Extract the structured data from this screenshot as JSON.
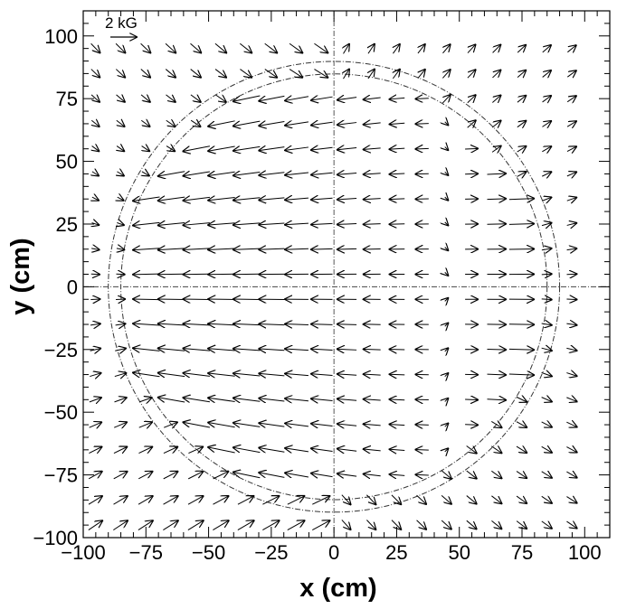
{
  "chart_data": {
    "type": "vector-field",
    "xlabel": "x (cm)",
    "ylabel": "y (cm)",
    "xlim": [
      -100,
      110
    ],
    "ylim": [
      -100,
      110
    ],
    "xticks": [
      -100,
      -75,
      -50,
      -25,
      0,
      25,
      50,
      75,
      100
    ],
    "yticks": [
      -100,
      -75,
      -50,
      -25,
      0,
      25,
      50,
      75,
      100
    ],
    "xtick_labels": [
      "−100",
      "−75",
      "−50",
      "−25",
      "0",
      "25",
      "50",
      "75",
      "100"
    ],
    "ytick_labels": [
      "−100",
      "−75",
      "−50",
      "−25",
      "0",
      "25",
      "50",
      "75",
      "100"
    ],
    "scale_arrow": {
      "label": "2 kG",
      "value_kG": 2
    },
    "reference_circles_radius_cm": [
      85,
      90
    ],
    "crosshair_lines": [
      "x=0",
      "y=0"
    ],
    "grid_spacing_cm": 10,
    "field_description": "Field arrows on a 10 cm grid from -95 to 95 cm; field points in -x (leftward) inside r~44-85 cm central region and +x outside/near x>45, vanishing near x~45 cm"
  }
}
